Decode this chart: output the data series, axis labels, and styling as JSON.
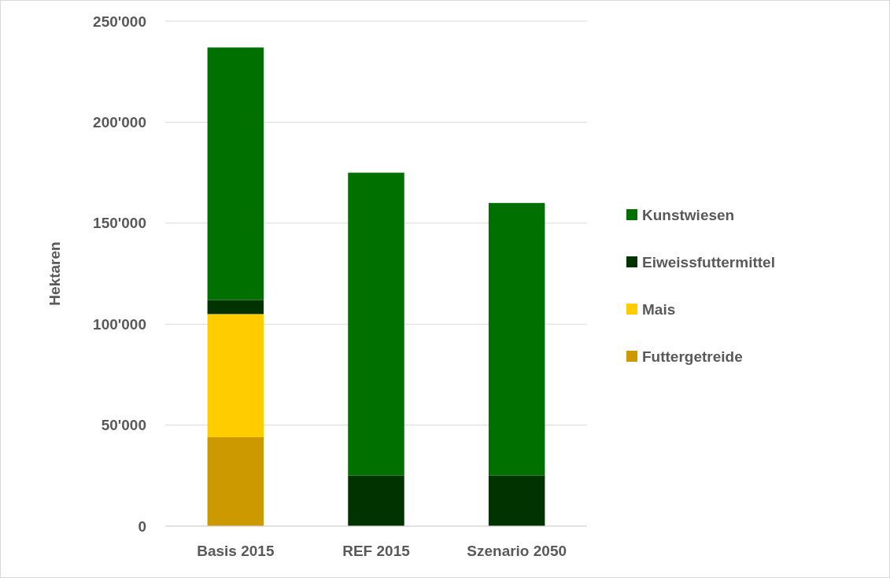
{
  "chart_data": {
    "type": "bar",
    "stacked": true,
    "ylabel": "Hektaren",
    "categories": [
      "Basis 2015",
      "REF 2015",
      "Szenario 2050"
    ],
    "series": [
      {
        "name": "Futtergetreide",
        "color": "#cc9a00",
        "values": [
          44000,
          0,
          0
        ]
      },
      {
        "name": "Mais",
        "color": "#ffcc00",
        "values": [
          61000,
          0,
          0
        ]
      },
      {
        "name": "Eiweissfuttermittel",
        "color": "#003300",
        "values": [
          7000,
          25000,
          25000
        ]
      },
      {
        "name": "Kunstwiesen",
        "color": "#007000",
        "values": [
          125000,
          150000,
          135000
        ]
      }
    ],
    "ylim": [
      0,
      250000
    ],
    "yticks": [
      0,
      {
        "value": 50000,
        "label": "50'000"
      },
      {
        "value": 100000,
        "label": "100'000"
      },
      {
        "value": 150000,
        "label": "150'000"
      },
      {
        "value": 200000,
        "label": "200'000"
      },
      {
        "value": 250000,
        "label": "250'000"
      }
    ],
    "grid": "y",
    "legend": "right"
  }
}
